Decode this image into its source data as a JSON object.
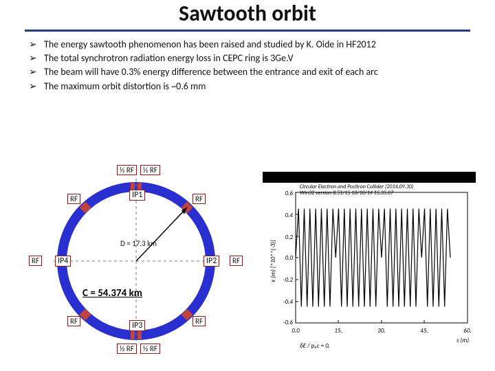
{
  "title": {
    "text": "Sawtooth orbit",
    "fontsize": 32
  },
  "rule_color": "#1c3e7b",
  "bullets": {
    "fontsize": 14,
    "items": [
      "The energy sawtooth phenomenon has been raised and studied by K. Oide in HF2012",
      "The total synchrotron radiation energy loss in CEPC ring is 3Ge.V",
      "The beam will have 0.3% energy difference between the entrance and exit of each arc",
      "The maximum orbit distortion is ~0.6 mm"
    ]
  },
  "ring": {
    "outer_color": "#2a2fd0",
    "inner_color": "#ffffff",
    "rf_block_color": "#c0443d",
    "dash_color": "#7a7a7a",
    "arrow_color": "#000000",
    "labels": {
      "ip1": "IP1",
      "ip2": "IP2",
      "ip3": "IP3",
      "ip4": "IP4",
      "rf": "RF",
      "half_rf": "½ RF",
      "diameter": "D = 17.3 km",
      "circumference": "C = 54.374 km"
    },
    "circ_fontsize": 15
  },
  "chart": {
    "type": "line",
    "title": "Circular Electron and Positron Collider (2014.09.30)",
    "subtitle": "Win32 version 8.51/15              10/10/14  15.35.07",
    "title_fontsize": 8,
    "xlabel": "s (m)",
    "ylabel": "x (m)  [*10**(-3)]",
    "label_fontsize": 9,
    "footer": "δE / p₀c = 0.",
    "background_color": "#ffffff",
    "axis_color": "#000000",
    "title_bar_color": "#000000",
    "xlim": [
      0,
      60
    ],
    "xticks": [
      0,
      15,
      30,
      45,
      60
    ],
    "ylim": [
      -0.6,
      0.6
    ],
    "yticks": [
      -0.6,
      -0.4,
      -0.2,
      0.0,
      0.2,
      0.4,
      0.6
    ],
    "series": {
      "color": "#000000",
      "width": 1.2,
      "x": [
        0,
        1,
        2,
        3,
        4,
        5,
        6,
        7,
        8,
        9,
        10,
        11,
        12,
        13,
        14,
        15,
        16,
        17,
        18,
        19,
        20,
        21,
        22,
        23,
        24,
        25,
        26,
        27,
        28,
        29,
        30,
        31,
        32,
        33,
        34,
        35,
        36,
        37,
        38,
        39,
        40,
        41,
        42,
        43,
        44,
        45,
        46,
        47,
        48,
        49,
        50,
        51,
        52,
        53,
        54
      ],
      "y": [
        0,
        0.45,
        -0.45,
        0.45,
        -0.45,
        0.45,
        -0.45,
        0.45,
        -0.45,
        0.45,
        -0.45,
        0.45,
        -0.45,
        0.45,
        0,
        0.45,
        -0.45,
        0.45,
        -0.45,
        0.45,
        -0.45,
        0.45,
        -0.45,
        0.45,
        -0.45,
        0.45,
        -0.45,
        0.45,
        -0.45,
        0.45,
        0,
        0.45,
        -0.45,
        0.45,
        -0.45,
        0.45,
        -0.45,
        0.45,
        -0.45,
        0.45,
        -0.45,
        0.45,
        -0.45,
        0.45,
        0,
        0.45,
        -0.45,
        0.45,
        -0.45,
        0.45,
        -0.45,
        0.45,
        -0.45,
        0.45,
        0
      ]
    }
  }
}
